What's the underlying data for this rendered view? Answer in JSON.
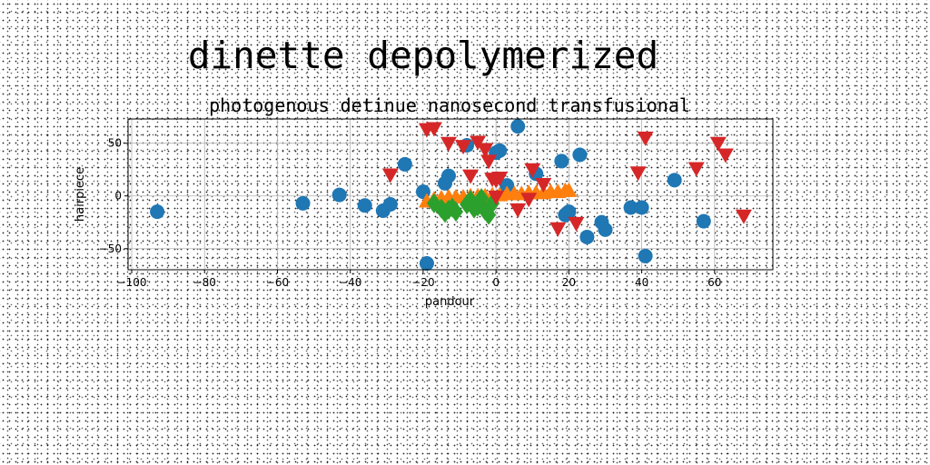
{
  "chart_data": {
    "type": "scatter",
    "suptitle": "dinette depolymerized",
    "title": "photogenous detinue nanosecond transfusional",
    "xlabel": "pandour",
    "ylabel": "hairpiece",
    "xlim": [
      -101,
      76
    ],
    "ylim": [
      -70,
      73
    ],
    "xticks": [
      -100,
      -80,
      -60,
      -40,
      -20,
      0,
      20,
      40,
      60
    ],
    "yticks": [
      -50,
      0,
      50
    ],
    "grid": true,
    "colors": {
      "blue": "#1f77b4",
      "orange": "#ff7f0e",
      "green": "#2ca02c",
      "red": "#d62728"
    },
    "series": [
      {
        "marker": "circle",
        "color": "#1f77b4",
        "points": [
          [
            -93,
            -15
          ],
          [
            -53,
            -7
          ],
          [
            -43,
            1
          ],
          [
            -36,
            -9
          ],
          [
            -31,
            -14
          ],
          [
            -29,
            -8
          ],
          [
            -25,
            30
          ],
          [
            -20,
            4
          ],
          [
            -19,
            -64
          ],
          [
            -14,
            12
          ],
          [
            -13,
            19
          ],
          [
            -8,
            48
          ],
          [
            0,
            41
          ],
          [
            1,
            43
          ],
          [
            3,
            10
          ],
          [
            6,
            66
          ],
          [
            11,
            21
          ],
          [
            18,
            33
          ],
          [
            19,
            -18
          ],
          [
            20,
            -15
          ],
          [
            23,
            39
          ],
          [
            25,
            -39
          ],
          [
            29,
            -25
          ],
          [
            30,
            -32
          ],
          [
            37,
            -11
          ],
          [
            40,
            -11
          ],
          [
            41,
            -57
          ],
          [
            49,
            15
          ],
          [
            57,
            -24
          ]
        ]
      },
      {
        "marker": "triangle-up",
        "color": "#ff7f0e",
        "points": [
          [
            -19,
            -5
          ],
          [
            -17,
            -3
          ],
          [
            -15,
            -2
          ],
          [
            -13,
            -1
          ],
          [
            -11,
            -1
          ],
          [
            -9,
            -1
          ],
          [
            -7,
            0
          ],
          [
            -5,
            0
          ],
          [
            -3,
            0
          ],
          [
            -1,
            1
          ],
          [
            1,
            1
          ],
          [
            3,
            2
          ],
          [
            5,
            2
          ],
          [
            7,
            2
          ],
          [
            9,
            3
          ],
          [
            11,
            3
          ],
          [
            13,
            3
          ],
          [
            15,
            4
          ],
          [
            17,
            4
          ],
          [
            19,
            5
          ],
          [
            20,
            5
          ]
        ]
      },
      {
        "marker": "diamond",
        "color": "#2ca02c",
        "points": [
          [
            -17,
            -7
          ],
          [
            -15,
            -12
          ],
          [
            -14,
            -16
          ],
          [
            -13,
            -13
          ],
          [
            -12,
            -11
          ],
          [
            -11,
            -15
          ],
          [
            -8,
            -8
          ],
          [
            -7,
            -4
          ],
          [
            -6,
            -12
          ],
          [
            -5,
            -10
          ],
          [
            -4,
            -2
          ],
          [
            -3,
            -14
          ],
          [
            -2,
            -18
          ],
          [
            -1,
            -7
          ]
        ]
      },
      {
        "marker": "triangle-down",
        "color": "#d62728",
        "points": [
          [
            -29,
            20
          ],
          [
            -19,
            63
          ],
          [
            -17,
            64
          ],
          [
            -13,
            50
          ],
          [
            -9,
            47
          ],
          [
            -7,
            19
          ],
          [
            -5,
            51
          ],
          [
            -3,
            44
          ],
          [
            -2,
            33
          ],
          [
            -1,
            16
          ],
          [
            0,
            -1
          ],
          [
            0,
            15
          ],
          [
            1,
            17
          ],
          [
            6,
            -13
          ],
          [
            9,
            -3
          ],
          [
            10,
            25
          ],
          [
            13,
            11
          ],
          [
            17,
            -31
          ],
          [
            22,
            -26
          ],
          [
            39,
            22
          ],
          [
            41,
            55
          ],
          [
            55,
            26
          ],
          [
            61,
            50
          ],
          [
            63,
            39
          ],
          [
            68,
            -19
          ]
        ]
      }
    ]
  }
}
